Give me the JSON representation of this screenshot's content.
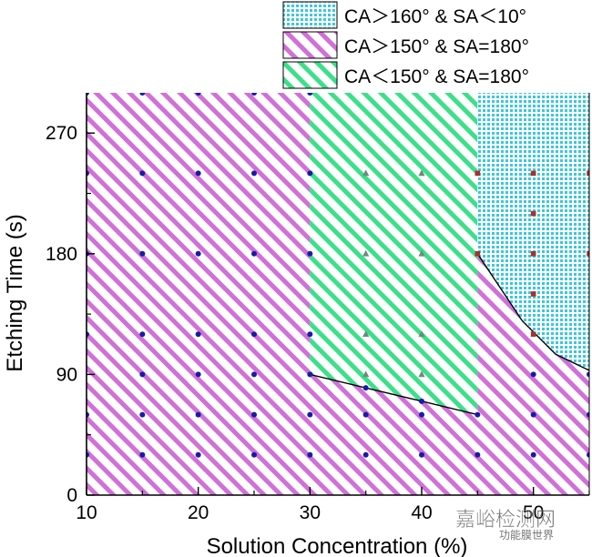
{
  "chart_data": {
    "type": "scatter",
    "title": "",
    "xlabel": "Solution Concentration (%)",
    "ylabel": "Etching Time (s)",
    "xlim": [
      10,
      55
    ],
    "ylim": [
      0,
      300
    ],
    "xticks": [
      10,
      20,
      30,
      40,
      50
    ],
    "yticks": [
      0,
      90,
      180,
      270
    ],
    "grid": false,
    "legend_position": "top-right",
    "regions": [
      {
        "name": "CA＞160° & SA＜10°",
        "pattern": "grid",
        "color": "#3cc8d8",
        "boundary": [
          [
            45,
            300
          ],
          [
            55,
            300
          ],
          [
            55,
            93
          ],
          [
            52,
            105
          ],
          [
            49,
            130
          ],
          [
            47,
            155
          ],
          [
            45,
            180
          ]
        ]
      },
      {
        "name": "CA＞150° & SA=180°",
        "pattern": "diagonal-hatch",
        "color": "#d070d8",
        "boundary": [
          [
            10,
            0
          ],
          [
            55,
            0
          ],
          [
            55,
            93
          ],
          [
            52,
            105
          ],
          [
            49,
            130
          ],
          [
            47,
            155
          ],
          [
            45,
            180
          ],
          [
            45,
            60
          ],
          [
            30,
            90
          ],
          [
            30,
            300
          ],
          [
            10,
            300
          ]
        ]
      },
      {
        "name": "CA＜150° & SA=180°",
        "pattern": "diagonal-hatch",
        "color": "#3ce08a",
        "boundary": [
          [
            30,
            300
          ],
          [
            45,
            300
          ],
          [
            45,
            60
          ],
          [
            40,
            70
          ],
          [
            35,
            80
          ],
          [
            30,
            90
          ]
        ]
      }
    ],
    "boundary_lines": [
      {
        "x": [
          30,
          35,
          40,
          45
        ],
        "y": [
          90,
          80,
          70,
          60
        ]
      },
      {
        "x": [
          45,
          47,
          49,
          52,
          55
        ],
        "y": [
          180,
          155,
          130,
          105,
          93
        ]
      }
    ],
    "series": [
      {
        "marker": "circle",
        "color": "#1a1aa8",
        "points": [
          [
            10,
            30
          ],
          [
            10,
            60
          ],
          [
            10,
            120
          ],
          [
            10,
            180
          ],
          [
            10,
            240
          ],
          [
            10,
            300
          ],
          [
            15,
            30
          ],
          [
            15,
            60
          ],
          [
            15,
            90
          ],
          [
            15,
            120
          ],
          [
            15,
            180
          ],
          [
            15,
            240
          ],
          [
            15,
            300
          ],
          [
            20,
            30
          ],
          [
            20,
            60
          ],
          [
            20,
            90
          ],
          [
            20,
            120
          ],
          [
            20,
            180
          ],
          [
            20,
            240
          ],
          [
            20,
            300
          ],
          [
            25,
            30
          ],
          [
            25,
            60
          ],
          [
            25,
            90
          ],
          [
            25,
            120
          ],
          [
            25,
            180
          ],
          [
            25,
            240
          ],
          [
            25,
            300
          ],
          [
            30,
            30
          ],
          [
            30,
            60
          ],
          [
            30,
            90
          ],
          [
            30,
            120
          ],
          [
            30,
            180
          ],
          [
            30,
            240
          ],
          [
            30,
            300
          ],
          [
            35,
            30
          ],
          [
            35,
            60
          ],
          [
            35,
            80
          ],
          [
            40,
            30
          ],
          [
            40,
            60
          ],
          [
            40,
            70
          ],
          [
            45,
            30
          ],
          [
            45,
            60
          ],
          [
            50,
            30
          ],
          [
            50,
            60
          ],
          [
            50,
            90
          ],
          [
            55,
            30
          ],
          [
            55,
            60
          ],
          [
            55,
            90
          ]
        ]
      },
      {
        "marker": "triangle",
        "color": "#6e8a7a",
        "points": [
          [
            35,
            90
          ],
          [
            35,
            120
          ],
          [
            35,
            180
          ],
          [
            35,
            240
          ],
          [
            40,
            90
          ],
          [
            40,
            120
          ],
          [
            40,
            180
          ],
          [
            40,
            240
          ]
        ]
      },
      {
        "marker": "square",
        "color": "#a83030",
        "points": [
          [
            45,
            180
          ],
          [
            45,
            240
          ],
          [
            50,
            120
          ],
          [
            50,
            150
          ],
          [
            50,
            180
          ],
          [
            50,
            210
          ],
          [
            50,
            240
          ],
          [
            55,
            180
          ],
          [
            55,
            240
          ]
        ]
      }
    ]
  },
  "watermark": {
    "line1": "嘉峪检测网",
    "line2": "功能膜世界"
  }
}
